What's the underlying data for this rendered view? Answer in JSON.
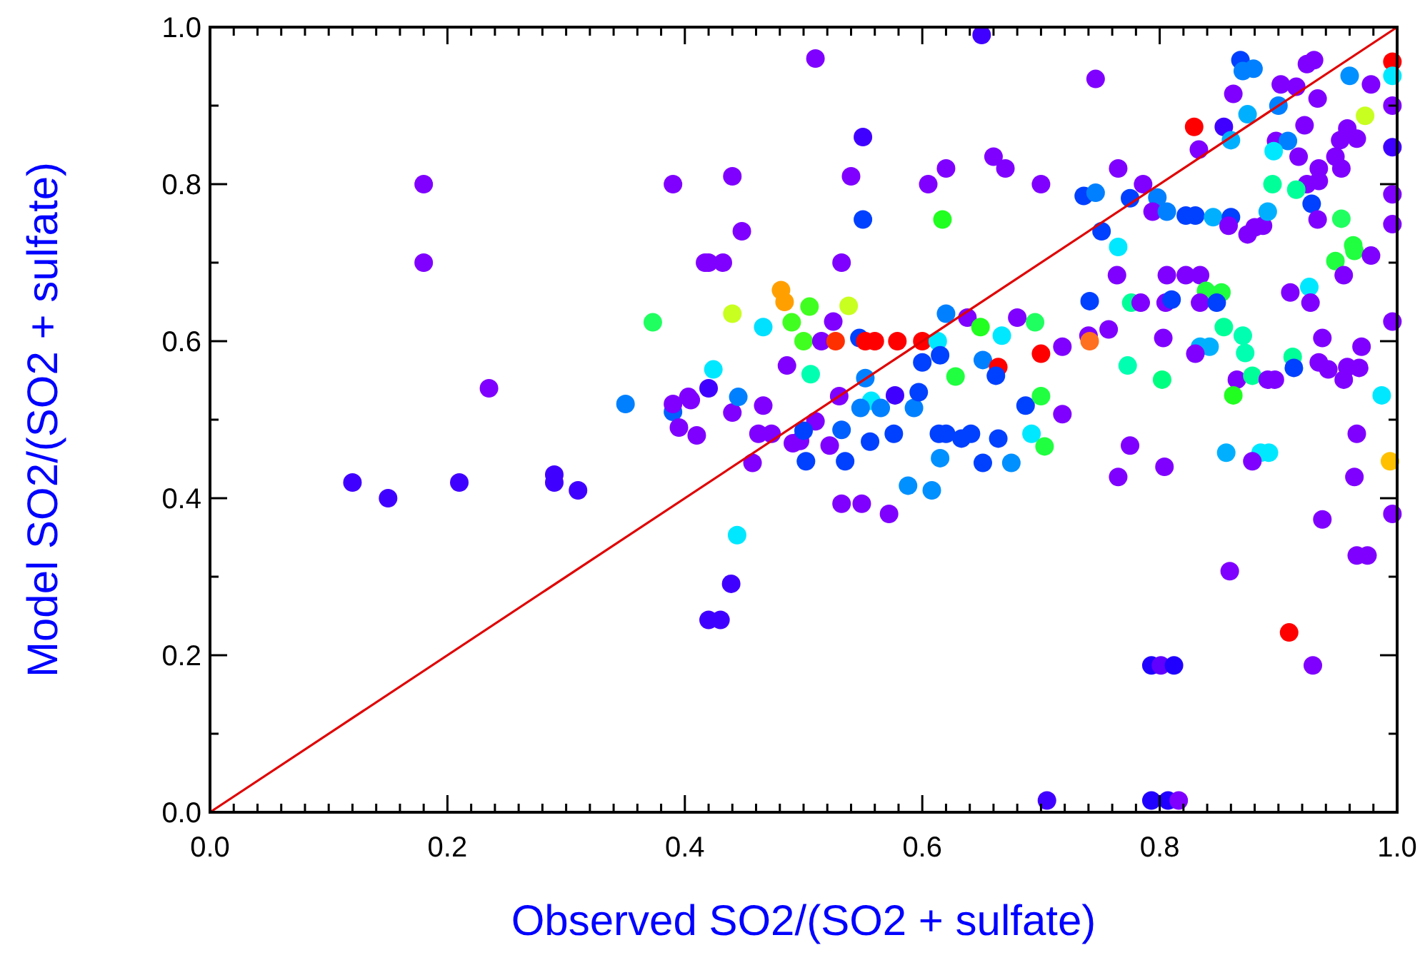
{
  "chart_data": {
    "type": "scatter",
    "xlabel": "Observed SO2/(SO2 + sulfate)",
    "ylabel": "Model SO2/(SO2 + sulfate)",
    "xlim": [
      0,
      1
    ],
    "ylim": [
      0,
      1
    ],
    "xticks": [
      {
        "value": 0,
        "label": "0.0"
      },
      {
        "value": 0.02,
        "label": null
      },
      {
        "value": 0.04,
        "label": null
      },
      {
        "value": 0.06,
        "label": null
      },
      {
        "value": 0.08,
        "label": null
      },
      {
        "value": 0.1,
        "label": null
      },
      {
        "value": 0.12,
        "label": null
      },
      {
        "value": 0.14,
        "label": null
      },
      {
        "value": 0.16,
        "label": null
      },
      {
        "value": 0.18,
        "label": null
      },
      {
        "value": 0.2,
        "label": "0.2"
      },
      {
        "value": 0.22,
        "label": null
      },
      {
        "value": 0.24,
        "label": null
      },
      {
        "value": 0.26,
        "label": null
      },
      {
        "value": 0.28,
        "label": null
      },
      {
        "value": 0.3,
        "label": null
      },
      {
        "value": 0.32,
        "label": null
      },
      {
        "value": 0.34,
        "label": null
      },
      {
        "value": 0.36,
        "label": null
      },
      {
        "value": 0.38,
        "label": null
      },
      {
        "value": 0.4,
        "label": "0.4"
      },
      {
        "value": 0.42,
        "label": null
      },
      {
        "value": 0.44,
        "label": null
      },
      {
        "value": 0.46,
        "label": null
      },
      {
        "value": 0.48,
        "label": null
      },
      {
        "value": 0.5,
        "label": null
      },
      {
        "value": 0.52,
        "label": null
      },
      {
        "value": 0.54,
        "label": null
      },
      {
        "value": 0.56,
        "label": null
      },
      {
        "value": 0.58,
        "label": null
      },
      {
        "value": 0.6,
        "label": "0.6"
      },
      {
        "value": 0.62,
        "label": null
      },
      {
        "value": 0.64,
        "label": null
      },
      {
        "value": 0.66,
        "label": null
      },
      {
        "value": 0.68,
        "label": null
      },
      {
        "value": 0.7,
        "label": null
      },
      {
        "value": 0.72,
        "label": null
      },
      {
        "value": 0.74,
        "label": null
      },
      {
        "value": 0.76,
        "label": null
      },
      {
        "value": 0.78,
        "label": null
      },
      {
        "value": 0.8,
        "label": "0.8"
      },
      {
        "value": 0.82,
        "label": null
      },
      {
        "value": 0.84,
        "label": null
      },
      {
        "value": 0.86,
        "label": null
      },
      {
        "value": 0.88,
        "label": null
      },
      {
        "value": 0.9,
        "label": null
      },
      {
        "value": 0.92,
        "label": null
      },
      {
        "value": 0.94,
        "label": null
      },
      {
        "value": 0.96,
        "label": null
      },
      {
        "value": 0.98,
        "label": null
      },
      {
        "value": 1,
        "label": "1.0"
      }
    ],
    "yticks": [
      {
        "value": 0,
        "label": "0.0"
      },
      {
        "value": 0.1,
        "label": null
      },
      {
        "value": 0.2,
        "label": "0.2"
      },
      {
        "value": 0.3,
        "label": null
      },
      {
        "value": 0.4,
        "label": "0.4"
      },
      {
        "value": 0.5,
        "label": null
      },
      {
        "value": 0.6,
        "label": "0.6"
      },
      {
        "value": 0.7,
        "label": null
      },
      {
        "value": 0.8,
        "label": "0.8"
      },
      {
        "value": 0.9,
        "label": null
      },
      {
        "value": 1,
        "label": "1.0"
      }
    ],
    "series": [
      {
        "marker": "circle",
        "x": [
          0.12,
          0.15,
          0.21,
          0.29,
          0.29,
          0.31,
          0.18,
          0.18,
          0.235,
          0.35,
          0.373,
          0.39,
          0.39,
          0.395,
          0.405,
          0.41,
          0.42,
          0.42,
          0.43,
          0.39,
          0.42,
          0.51,
          0.65,
          0.55,
          0.44,
          0.54,
          0.605,
          0.62,
          0.66,
          0.67,
          0.7,
          0.55,
          0.617,
          0.448,
          0.417,
          0.432,
          0.532,
          0.481,
          0.484,
          0.44,
          0.505,
          0.538,
          0.466,
          0.49,
          0.525,
          0.62,
          0.638,
          0.68,
          0.695,
          0.5,
          0.515,
          0.527,
          0.547,
          0.552,
          0.56,
          0.579,
          0.6,
          0.613,
          0.649,
          0.667,
          0.6,
          0.615,
          0.651,
          0.664,
          0.662,
          0.7,
          0.424,
          0.486,
          0.506,
          0.552,
          0.628,
          0.403,
          0.44,
          0.445,
          0.466,
          0.53,
          0.557,
          0.548,
          0.565,
          0.577,
          0.593,
          0.597,
          0.687,
          0.7,
          0.462,
          0.473,
          0.491,
          0.497,
          0.51,
          0.522,
          0.5,
          0.532,
          0.556,
          0.576,
          0.614,
          0.62,
          0.633,
          0.641,
          0.664,
          0.692,
          0.703,
          0.457,
          0.502,
          0.535,
          0.615,
          0.651,
          0.675,
          0.588,
          0.608,
          0.532,
          0.549,
          0.572,
          0.444,
          0.439,
          0.705,
          0.746,
          0.868,
          0.879,
          0.87,
          0.924,
          0.93,
          0.996,
          0.996,
          0.96,
          0.978,
          0.902,
          0.915,
          0.933,
          0.996,
          0.862,
          0.874,
          0.973,
          0.922,
          0.829,
          0.854,
          0.9,
          0.86,
          0.898,
          0.908,
          0.896,
          0.958,
          0.966,
          0.952,
          0.996,
          0.833,
          0.917,
          0.948,
          0.934,
          0.953,
          0.765,
          0.786,
          0.736,
          0.746,
          0.775,
          0.798,
          0.794,
          0.806,
          0.822,
          0.83,
          0.845,
          0.86,
          0.858,
          0.874,
          0.88,
          0.887,
          0.891,
          0.924,
          0.934,
          0.915,
          0.895,
          0.928,
          0.933,
          0.953,
          0.996,
          0.996,
          0.751,
          0.765,
          0.963,
          0.964,
          0.978,
          0.948,
          0.764,
          0.806,
          0.822,
          0.834,
          0.955,
          0.926,
          0.741,
          0.776,
          0.784,
          0.805,
          0.81,
          0.839,
          0.852,
          0.834,
          0.848,
          0.91,
          0.927,
          0.996,
          0.854,
          0.87,
          0.872,
          0.757,
          0.74,
          0.741,
          0.718,
          0.803,
          0.834,
          0.842,
          0.83,
          0.937,
          0.97,
          0.773,
          0.802,
          0.912,
          0.913,
          0.934,
          0.942,
          0.958,
          0.968,
          0.955,
          0.865,
          0.878,
          0.891,
          0.897,
          0.862,
          0.987,
          0.718,
          0.775,
          0.856,
          0.885,
          0.892,
          0.878,
          0.966,
          0.994,
          0.804,
          0.765,
          0.964,
          0.996,
          0.937,
          0.966,
          0.975,
          0.859,
          0.909,
          0.793,
          0.801,
          0.812,
          0.929,
          0.793,
          0.807,
          0.816
        ],
        "values": [
          0.42,
          0.4,
          0.42,
          0.43,
          0.42,
          0.41,
          0.8,
          0.7,
          0.54,
          0.52,
          0.624,
          0.51,
          0.52,
          0.49,
          0.525,
          0.48,
          0.54,
          0.245,
          0.245,
          0.8,
          0.7,
          0.96,
          0.99,
          0.86,
          0.81,
          0.81,
          0.8,
          0.82,
          0.835,
          0.82,
          0.8,
          0.755,
          0.755,
          0.74,
          0.7,
          0.7,
          0.7,
          0.665,
          0.65,
          0.635,
          0.644,
          0.645,
          0.618,
          0.624,
          0.625,
          0.635,
          0.63,
          0.63,
          0.624,
          0.6,
          0.6,
          0.6,
          0.604,
          0.6,
          0.6,
          0.6,
          0.6,
          0.6,
          0.618,
          0.607,
          0.573,
          0.582,
          0.576,
          0.567,
          0.556,
          0.584,
          0.564,
          0.569,
          0.558,
          0.553,
          0.555,
          0.529,
          0.509,
          0.529,
          0.518,
          0.53,
          0.524,
          0.515,
          0.515,
          0.531,
          0.515,
          0.535,
          0.518,
          0.53,
          0.482,
          0.482,
          0.47,
          0.473,
          0.498,
          0.467,
          0.486,
          0.487,
          0.472,
          0.482,
          0.482,
          0.482,
          0.476,
          0.482,
          0.476,
          0.482,
          0.466,
          0.445,
          0.447,
          0.447,
          0.451,
          0.445,
          0.445,
          0.416,
          0.41,
          0.393,
          0.393,
          0.38,
          0.353,
          0.291,
          0.015,
          0.934,
          0.958,
          0.947,
          0.944,
          0.953,
          0.958,
          0.956,
          0.938,
          0.938,
          0.927,
          0.927,
          0.924,
          0.909,
          0.9,
          0.915,
          0.889,
          0.887,
          0.875,
          0.873,
          0.873,
          0.9,
          0.856,
          0.855,
          0.855,
          0.842,
          0.871,
          0.858,
          0.856,
          0.847,
          0.844,
          0.835,
          0.835,
          0.82,
          0.82,
          0.82,
          0.8,
          0.785,
          0.789,
          0.782,
          0.783,
          0.765,
          0.765,
          0.76,
          0.76,
          0.758,
          0.758,
          0.747,
          0.736,
          0.745,
          0.747,
          0.765,
          0.8,
          0.804,
          0.793,
          0.8,
          0.775,
          0.755,
          0.756,
          0.787,
          0.749,
          0.74,
          0.72,
          0.722,
          0.715,
          0.709,
          0.702,
          0.684,
          0.684,
          0.684,
          0.684,
          0.684,
          0.669,
          0.651,
          0.649,
          0.649,
          0.649,
          0.653,
          0.664,
          0.662,
          0.649,
          0.649,
          0.662,
          0.649,
          0.625,
          0.618,
          0.607,
          0.585,
          0.615,
          0.607,
          0.6,
          0.593,
          0.604,
          0.593,
          0.593,
          0.584,
          0.604,
          0.593,
          0.569,
          0.551,
          0.58,
          0.566,
          0.573,
          0.564,
          0.567,
          0.566,
          0.551,
          0.551,
          0.556,
          0.551,
          0.551,
          0.531,
          0.531,
          0.507,
          0.467,
          0.458,
          0.458,
          0.458,
          0.447,
          0.482,
          0.447,
          0.44,
          0.427,
          0.427,
          0.38,
          0.373,
          0.327,
          0.327,
          0.307,
          0.229,
          0.187,
          0.187,
          0.187,
          0.187,
          0.015,
          0.015,
          0.015
        ],
        "colors": [
          "#4000ff",
          "#4000ff",
          "#4000ff",
          "#4000ff",
          "#4000ff",
          "#4000ff",
          "#7f00ff",
          "#7f00ff",
          "#7f00ff",
          "#0080ff",
          "#20ff60",
          "#0060ff",
          "#7f00ff",
          "#7f00ff",
          "#7f00ff",
          "#7f00ff",
          "#4000ff",
          "#4000ff",
          "#4000ff",
          "#7f00ff",
          "#7f00ff",
          "#7f00ff",
          "#4000ff",
          "#4000ff",
          "#7f00ff",
          "#7f00ff",
          "#7f00ff",
          "#7f00ff",
          "#7f00ff",
          "#7f00ff",
          "#7f00ff",
          "#0040ff",
          "#20ff20",
          "#7f00ff",
          "#7f00ff",
          "#7f00ff",
          "#7f00ff",
          "#ffa000",
          "#ffa000",
          "#c8ff20",
          "#40ff20",
          "#c8ff20",
          "#00e0ff",
          "#40ff20",
          "#7f00ff",
          "#0080ff",
          "#7f00ff",
          "#7f00ff",
          "#20ff60",
          "#40ff20",
          "#7f00ff",
          "#ff3000",
          "#0040ff",
          "#ff0000",
          "#ff0000",
          "#ff0000",
          "#ff0000",
          "#00e8ff",
          "#20ff20",
          "#00e8ff",
          "#0040ff",
          "#0040ff",
          "#0080ff",
          "#ff0000",
          "#0040ff",
          "#ff0000",
          "#00e8ff",
          "#7f00ff",
          "#00ffb0",
          "#0080ff",
          "#20ff40",
          "#7f00ff",
          "#7f00ff",
          "#0080ff",
          "#7f00ff",
          "#7f00ff",
          "#00e8ff",
          "#0080ff",
          "#0080ff",
          "#4000ff",
          "#0080ff",
          "#0040ff",
          "#0040ff",
          "#20ff40",
          "#7f00ff",
          "#7f00ff",
          "#7f00ff",
          "#7f00ff",
          "#7f00ff",
          "#7f00ff",
          "#0040ff",
          "#0060ff",
          "#0040ff",
          "#0040ff",
          "#0040ff",
          "#0040ff",
          "#0040ff",
          "#0040ff",
          "#0040ff",
          "#00e8ff",
          "#20ff40",
          "#7f00ff",
          "#0040ff",
          "#0040ff",
          "#0090ff",
          "#0040ff",
          "#0090ff",
          "#0090ff",
          "#0090ff",
          "#7f00ff",
          "#7f00ff",
          "#7f00ff",
          "#00e8ff",
          "#4000ff",
          "#4000ff",
          "#7f00ff",
          "#0040ff",
          "#0080ff",
          "#0080ff",
          "#7f00ff",
          "#7f00ff",
          "#ff0000",
          "#00e8ff",
          "#0090ff",
          "#7f00ff",
          "#7f00ff",
          "#7f00ff",
          "#7f00ff",
          "#7f00ff",
          "#7f00ff",
          "#00b0ff",
          "#c8ff20",
          "#7f00ff",
          "#ff0000",
          "#4000ff",
          "#0080ff",
          "#00b0ff",
          "#7f00ff",
          "#0080ff",
          "#00e8ff",
          "#7f00ff",
          "#7f00ff",
          "#7f00ff",
          "#4000ff",
          "#7f00ff",
          "#7f00ff",
          "#7f00ff",
          "#7f00ff",
          "#7f00ff",
          "#7f00ff",
          "#7f00ff",
          "#0040ff",
          "#0080ff",
          "#0040ff",
          "#0080ff",
          "#7f00ff",
          "#0080ff",
          "#0040ff",
          "#0040ff",
          "#00b0ff",
          "#0040ff",
          "#7f00ff",
          "#7f00ff",
          "#7f00ff",
          "#7f00ff",
          "#00b0ff",
          "#7f00ff",
          "#7f00ff",
          "#00ff99",
          "#00ff99",
          "#0040ff",
          "#7f00ff",
          "#20ff60",
          "#7f00ff",
          "#7f00ff",
          "#0040ff",
          "#00e8ff",
          "#20ff40",
          "#20ff40",
          "#7f00ff",
          "#20ff40",
          "#7f00ff",
          "#7f00ff",
          "#7f00ff",
          "#7f00ff",
          "#7f00ff",
          "#00e8ff",
          "#0040ff",
          "#00ff99",
          "#7f00ff",
          "#7f00ff",
          "#0040ff",
          "#20ff40",
          "#20ff40",
          "#7f00ff",
          "#0040ff",
          "#7f00ff",
          "#7f00ff",
          "#7f00ff",
          "#00ff99",
          "#00ffb0",
          "#00ffb0",
          "#7f00ff",
          "#7f00ff",
          "#ff7020",
          "#7f00ff",
          "#7f00ff",
          "#00b0ff",
          "#00b0ff",
          "#7f00ff",
          "#7f00ff",
          "#7f00ff",
          "#00ffb0",
          "#00ff80",
          "#00ff99",
          "#0040ff",
          "#7f00ff",
          "#7f00ff",
          "#7f00ff",
          "#7f00ff",
          "#7f00ff",
          "#7f00ff",
          "#00ff99",
          "#7f00ff",
          "#7f00ff",
          "#20ff20",
          "#00e8ff",
          "#7f00ff",
          "#7f00ff",
          "#00b0ff",
          "#00e8ff",
          "#00e8ff",
          "#7f00ff",
          "#7f00ff",
          "#ffc000",
          "#7f00ff",
          "#7f00ff",
          "#7f00ff",
          "#7f00ff",
          "#7f00ff",
          "#7f00ff",
          "#7f00ff",
          "#7f00ff",
          "#ff0000",
          "#2000ff",
          "#6000ff",
          "#2000ff",
          "#7f00ff",
          "#2000ff",
          "#2000ff",
          "#7f00ff"
        ]
      },
      {
        "type": "line",
        "x": [
          0,
          1
        ],
        "values": [
          0,
          1
        ],
        "color": "#e00000",
        "line_style": "solid"
      }
    ]
  }
}
